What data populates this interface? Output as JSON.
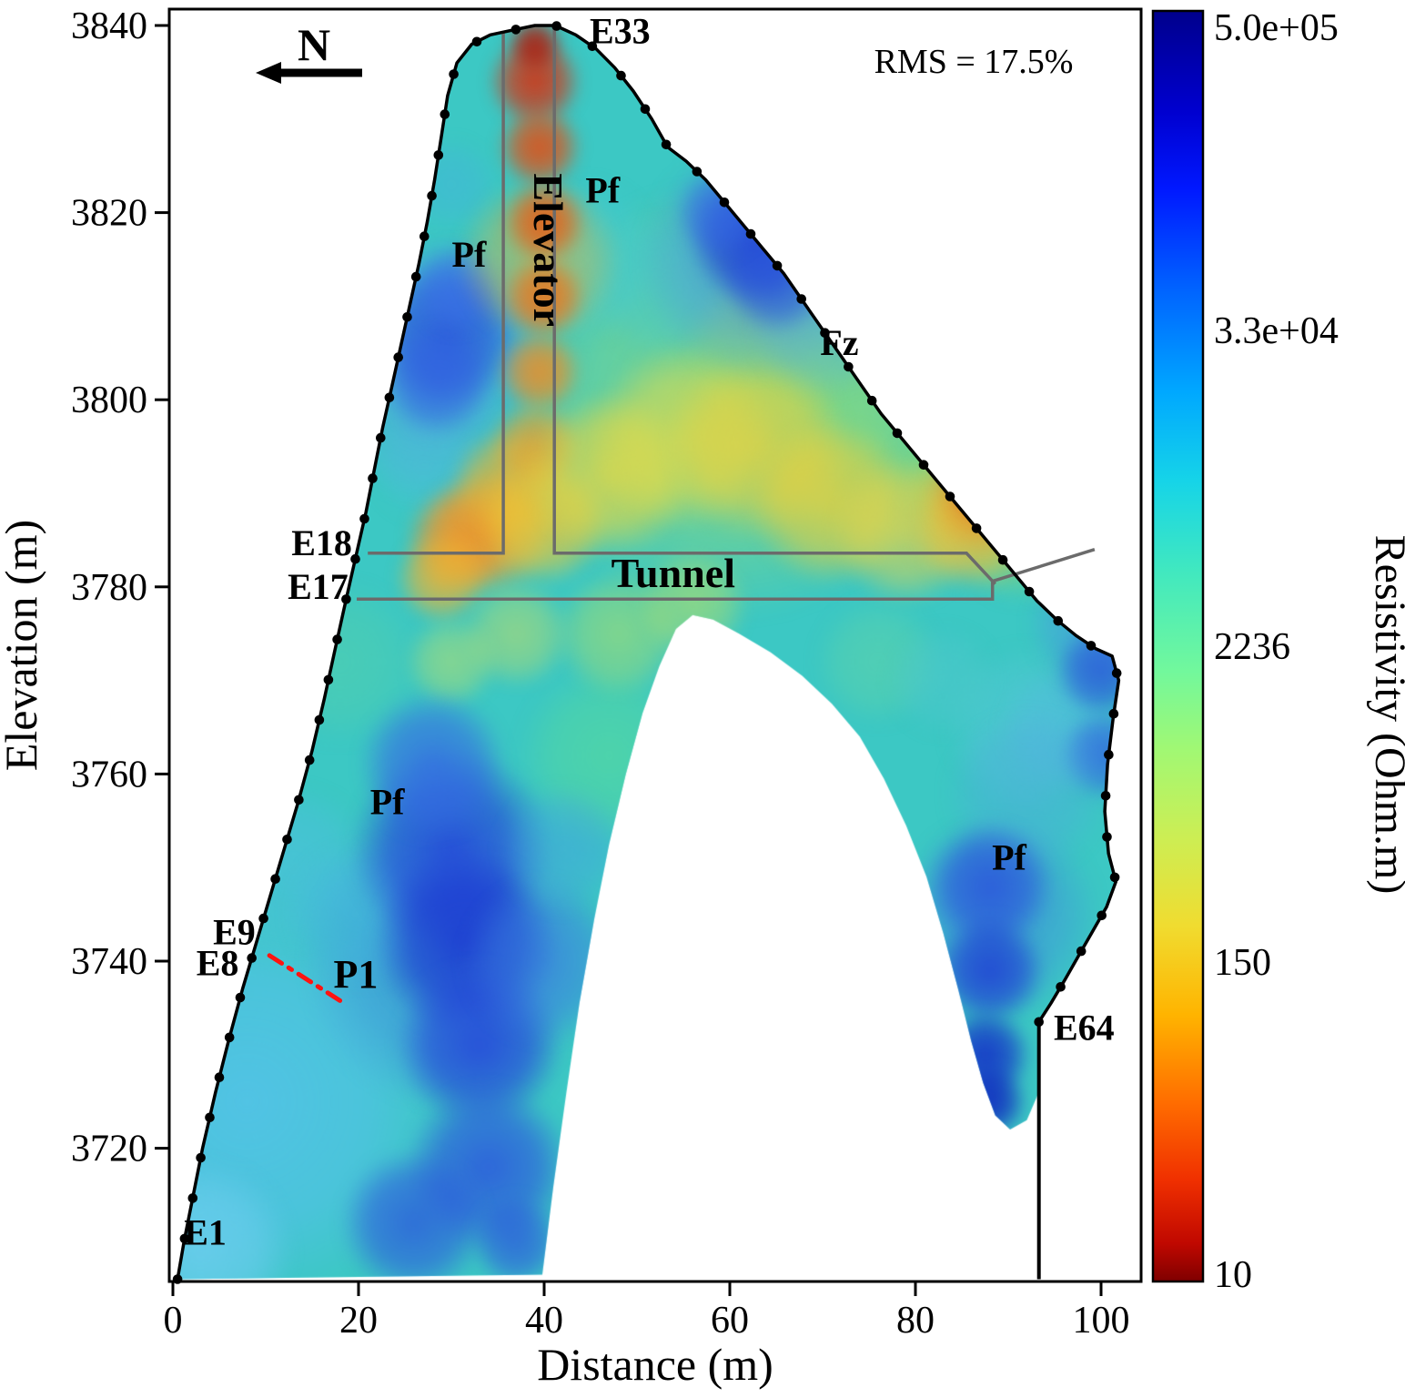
{
  "figure": {
    "xlabel": "Distance (m)",
    "ylabel": "Elevation (m)",
    "colorbar_label": "Resistivity (Ohm.m)",
    "rms_label": "RMS = 17.5%",
    "north_label": "N"
  },
  "chart_data": {
    "type": "heatmap",
    "title": "Inverted electrical resistivity tomography cross-section",
    "xlabel": "Distance (m)",
    "ylabel": "Elevation (m)",
    "xlim": [
      0,
      104
    ],
    "ylim": [
      3705,
      3842
    ],
    "x_ticks": [
      0,
      20,
      40,
      60,
      80,
      100
    ],
    "y_ticks": [
      3720,
      3740,
      3760,
      3780,
      3800,
      3820,
      3840
    ],
    "rms": "17.5%",
    "colorbar": {
      "label": "Resistivity (Ohm.m)",
      "scale": "log",
      "range_ohm_m": [
        10,
        500000
      ],
      "ticks": [
        {
          "label": "5.0e+05",
          "t": 0.0
        },
        {
          "label": "3.3e+04",
          "t": 0.2513
        },
        {
          "label": "2236",
          "t": 0.5
        },
        {
          "label": "150",
          "t": 0.7487
        },
        {
          "label": "10",
          "t": 1.0
        }
      ],
      "gradient": [
        [
          0,
          "#00008c"
        ],
        [
          0.08,
          "#0000d0"
        ],
        [
          0.14,
          "#0018ff"
        ],
        [
          0.22,
          "#0064ff"
        ],
        [
          0.3,
          "#00a8ff"
        ],
        [
          0.37,
          "#16d4e8"
        ],
        [
          0.44,
          "#40e8c0"
        ],
        [
          0.52,
          "#72f89c"
        ],
        [
          0.58,
          "#a0f874"
        ],
        [
          0.65,
          "#ccee54"
        ],
        [
          0.72,
          "#f0dc30"
        ],
        [
          0.79,
          "#ffb400"
        ],
        [
          0.86,
          "#ff6c00"
        ],
        [
          0.92,
          "#f03000"
        ],
        [
          0.97,
          "#c00800"
        ],
        [
          1,
          "#7f0000"
        ]
      ]
    },
    "electrodes": {
      "count": 64,
      "first": "E1",
      "last": "E64",
      "labeled": [
        "E1",
        "E8",
        "E9",
        "E17",
        "E18",
        "E33",
        "E64"
      ]
    },
    "boundary_surface": [
      [
        0.5,
        3706
      ],
      [
        1.2,
        3710
      ],
      [
        2.2,
        3715
      ],
      [
        3.2,
        3720
      ],
      [
        4.6,
        3726
      ],
      [
        6.0,
        3731.5
      ],
      [
        7.5,
        3737
      ],
      [
        9.0,
        3742
      ],
      [
        10.5,
        3747
      ],
      [
        12.0,
        3752
      ],
      [
        13.5,
        3757
      ],
      [
        15.0,
        3762.5
      ],
      [
        16.3,
        3768
      ],
      [
        17.4,
        3773
      ],
      [
        18.4,
        3777.5
      ],
      [
        19.2,
        3781
      ],
      [
        20.0,
        3784.5
      ],
      [
        20.8,
        3788
      ],
      [
        21.7,
        3792.5
      ],
      [
        22.6,
        3797
      ],
      [
        23.5,
        3801
      ],
      [
        24.5,
        3805.5
      ],
      [
        25.5,
        3810
      ],
      [
        26.5,
        3814.5
      ],
      [
        27.4,
        3819
      ],
      [
        28.2,
        3823.5
      ],
      [
        28.9,
        3828
      ],
      [
        29.6,
        3832.5
      ],
      [
        30.6,
        3836
      ],
      [
        32.2,
        3838
      ],
      [
        34.2,
        3839
      ],
      [
        36.6,
        3839.5
      ],
      [
        39.0,
        3840
      ],
      [
        41.2,
        3840
      ],
      [
        43.4,
        3839
      ],
      [
        45.6,
        3837.5
      ],
      [
        47.6,
        3835.5
      ],
      [
        49.6,
        3833
      ],
      [
        51.6,
        3830
      ],
      [
        53.3,
        3827
      ],
      [
        55.3,
        3825.5
      ],
      [
        57.4,
        3823.5
      ],
      [
        59.5,
        3821
      ],
      [
        61.6,
        3818.5
      ],
      [
        63.7,
        3816
      ],
      [
        65.8,
        3813.5
      ],
      [
        67.9,
        3810.5
      ],
      [
        70.0,
        3807.5
      ],
      [
        72.1,
        3804.5
      ],
      [
        74.2,
        3801.5
      ],
      [
        76.3,
        3798.5
      ],
      [
        78.4,
        3796
      ],
      [
        80.5,
        3793.5
      ],
      [
        82.6,
        3791
      ],
      [
        84.7,
        3788.5
      ],
      [
        86.8,
        3786
      ],
      [
        88.9,
        3783.5
      ],
      [
        91.0,
        3781
      ],
      [
        93.1,
        3778.5
      ],
      [
        95.2,
        3776.5
      ],
      [
        97.3,
        3774.8
      ],
      [
        99.4,
        3773.4
      ],
      [
        101.2,
        3772.6
      ],
      [
        101.9,
        3770.0
      ],
      [
        101.3,
        3766
      ],
      [
        100.7,
        3761
      ],
      [
        100.4,
        3756
      ],
      [
        100.8,
        3751.5
      ],
      [
        101.6,
        3748.5
      ],
      [
        100.6,
        3745.8
      ],
      [
        99.1,
        3743.2
      ],
      [
        97.6,
        3740.6
      ],
      [
        96.1,
        3738.0
      ],
      [
        94.6,
        3735.5
      ],
      [
        93.3,
        3733.5
      ]
    ],
    "boundary_underside": [
      [
        93.3,
        3726
      ],
      [
        92.0,
        3723
      ],
      [
        90.2,
        3722
      ],
      [
        88.6,
        3723.5
      ],
      [
        87.3,
        3727
      ],
      [
        86.0,
        3731.5
      ],
      [
        84.6,
        3737
      ],
      [
        83.0,
        3743
      ],
      [
        81.2,
        3749
      ],
      [
        79.0,
        3754.5
      ],
      [
        76.6,
        3759.5
      ],
      [
        74.0,
        3764
      ],
      [
        71.0,
        3767.5
      ],
      [
        67.8,
        3770.5
      ],
      [
        64.4,
        3773
      ],
      [
        61.0,
        3775
      ],
      [
        58.2,
        3776.5
      ],
      [
        56.0,
        3777
      ],
      [
        54.2,
        3775.5
      ],
      [
        52.4,
        3771.5
      ],
      [
        50.6,
        3766.5
      ],
      [
        48.8,
        3760
      ],
      [
        47.0,
        3752.5
      ],
      [
        45.4,
        3744.5
      ],
      [
        43.8,
        3735.5
      ],
      [
        42.4,
        3726
      ],
      [
        41.0,
        3716
      ],
      [
        39.8,
        3706.5
      ],
      [
        0.5,
        3706
      ]
    ],
    "e64_line": [
      [
        93.3,
        3733.5
      ],
      [
        93.3,
        3706
      ]
    ],
    "structures": [
      {
        "name": "elevator-shaft-left-wall",
        "pts": [
          [
            35.6,
            3839.4
          ],
          [
            35.6,
            3783.6
          ],
          [
            21.0,
            3783.6
          ]
        ]
      },
      {
        "name": "elevator-shaft-right-wall-tunnel-roof",
        "pts": [
          [
            41.1,
            3839.8
          ],
          [
            41.1,
            3783.6
          ],
          [
            85.5,
            3783.6
          ],
          [
            88.6,
            3780.3
          ]
        ]
      },
      {
        "name": "tunnel-floor",
        "pts": [
          [
            19.8,
            3778.7
          ],
          [
            88.3,
            3778.7
          ],
          [
            88.3,
            3780.6
          ],
          [
            99.3,
            3784.0
          ]
        ]
      }
    ],
    "p1_line": {
      "name": "P1",
      "pts": [
        [
          10.4,
          3740.6
        ],
        [
          18.6,
          3735.4
        ]
      ]
    },
    "north_arrow": {
      "direction": "left"
    },
    "field": {
      "base_color": "#3cc8c4",
      "blobs": [
        [
          8,
          3725,
          22,
          "#55c2ea",
          0.85
        ],
        [
          3,
          3709,
          10,
          "#6ccdee",
          0.85
        ],
        [
          13,
          3750,
          9,
          "#4fc0e0",
          0.6
        ],
        [
          18,
          3772,
          9,
          "#52cfae",
          0.6
        ],
        [
          47,
          3762,
          10,
          "#55d8a0",
          0.7
        ],
        [
          60,
          3800,
          24,
          "#aade66",
          0.5
        ],
        [
          75,
          3795,
          13,
          "#92dc74",
          0.55
        ],
        [
          44,
          3815,
          9,
          "#48cdd4",
          0.6
        ],
        [
          53,
          3812,
          8,
          "#46c8cc",
          0.6
        ],
        [
          92,
          3765,
          9,
          "#58c8d8",
          0.6
        ],
        [
          97,
          3784,
          7,
          "#74d686",
          0.65
        ],
        [
          48,
          3775,
          7,
          "#b8e060",
          0.55
        ],
        [
          56,
          3778,
          6,
          "#d0e455",
          0.5
        ],
        [
          76,
          3772,
          7,
          "#62d4a8",
          0.55
        ],
        [
          83,
          3770,
          6,
          "#50c8cc",
          0.55
        ],
        [
          96,
          3765,
          7,
          "#54b8e2",
          0.5
        ],
        [
          64,
          3805,
          9,
          "#a0dc6a",
          0.45
        ],
        [
          84,
          3792,
          7,
          "#84da7c",
          0.55
        ],
        [
          30,
          3823,
          5,
          "#44b4dc",
          0.5
        ],
        [
          27,
          3793,
          6,
          "#4cc2d8",
          0.5
        ],
        [
          91,
          3784,
          6,
          "#7cd882",
          0.5
        ],
        [
          29,
          3806,
          12,
          "#4f9ae8",
          0.55
        ],
        [
          27,
          3798,
          9,
          "#55aee0",
          0.45
        ],
        [
          29.5,
          3807,
          8,
          "#2a52dc",
          0.85
        ],
        [
          28.5,
          3802,
          6,
          "#3160e2",
          0.75
        ],
        [
          30.5,
          3812,
          5,
          "#3b6ee8",
          0.7
        ],
        [
          39.5,
          3815,
          9,
          "#f3b52e",
          0.5
        ],
        [
          39,
          3834,
          5,
          "#d63111",
          0.92
        ],
        [
          39.5,
          3827,
          4.5,
          "#e44d12",
          0.92
        ],
        [
          40,
          3819,
          4.5,
          "#ea5c12",
          0.9
        ],
        [
          40,
          3811,
          4.5,
          "#ef7218",
          0.88
        ],
        [
          39.5,
          3803,
          4.5,
          "#f28c22",
          0.88
        ],
        [
          39,
          3795,
          5,
          "#f2a028",
          0.82
        ],
        [
          39,
          3838,
          3,
          "#b21708",
          0.9
        ],
        [
          34,
          3786,
          7,
          "#f5a52c",
          0.85
        ],
        [
          31,
          3785,
          6,
          "#f2952a",
          0.85
        ],
        [
          29,
          3781,
          5,
          "#f5b32e",
          0.8
        ],
        [
          36,
          3791,
          6,
          "#f3b22e",
          0.75
        ],
        [
          40,
          3787,
          7,
          "#f3c833",
          0.8
        ],
        [
          47,
          3792,
          9,
          "#eed83e",
          0.75
        ],
        [
          55,
          3796,
          10,
          "#e6dc48",
          0.7
        ],
        [
          63,
          3795,
          10,
          "#ead23e",
          0.75
        ],
        [
          71,
          3789,
          9,
          "#eccf3c",
          0.75
        ],
        [
          79,
          3786,
          8,
          "#e8d44a",
          0.7
        ],
        [
          86,
          3786,
          6,
          "#f0c23a",
          0.65
        ],
        [
          37,
          3775,
          6,
          "#d8e058",
          0.5
        ],
        [
          30,
          3772,
          5,
          "#cfe35e",
          0.5
        ],
        [
          63,
          3815,
          13,
          "#4b8fe6",
          0.55
        ],
        [
          70,
          3808,
          8,
          "#55aede",
          0.45
        ],
        [
          62.5,
          3817,
          7,
          "#1f3fd4",
          0.9
        ],
        [
          65,
          3813,
          6,
          "#2a52dc",
          0.8
        ],
        [
          59,
          3820,
          5,
          "#3464e4",
          0.75
        ],
        [
          87,
          3788,
          9,
          "#efc238",
          0.5
        ],
        [
          87.5,
          3790,
          6.5,
          "#ef8c20",
          0.65
        ],
        [
          88,
          3791,
          4.5,
          "#dd3c10",
          0.85
        ],
        [
          88,
          3792,
          2.5,
          "#a51408",
          0.95
        ],
        [
          99,
          3776,
          7,
          "#4b8fe6",
          0.5
        ],
        [
          100,
          3771,
          5,
          "#2a52dc",
          0.8
        ],
        [
          100.5,
          3762,
          5,
          "#3160e2",
          0.75
        ],
        [
          89,
          3745,
          11,
          "#4088e0",
          0.55
        ],
        [
          92,
          3758,
          9,
          "#50a8e0",
          0.45
        ],
        [
          88,
          3748,
          7,
          "#2a52dc",
          0.85
        ],
        [
          88,
          3739,
          6,
          "#1f3fd4",
          0.88
        ],
        [
          87.5,
          3730,
          5,
          "#132cc8",
          0.9
        ],
        [
          88,
          3725,
          4,
          "#0f24c0",
          0.92
        ],
        [
          30,
          3740,
          16,
          "#3f80e4",
          0.55
        ],
        [
          20,
          3745,
          8,
          "#48b4e4",
          0.5
        ],
        [
          30,
          3752,
          11,
          "#2546da",
          0.9
        ],
        [
          31.5,
          3742,
          10,
          "#1c38d2",
          0.9
        ],
        [
          33,
          3731,
          9,
          "#2546da",
          0.88
        ],
        [
          34,
          3718,
          9,
          "#2c55de",
          0.86
        ],
        [
          28,
          3761,
          8,
          "#3568e4",
          0.8
        ],
        [
          26,
          3712,
          8,
          "#2c55de",
          0.78
        ],
        [
          37,
          3710,
          5,
          "#2c55de",
          0.75
        ],
        [
          40,
          3740,
          9,
          "#3a78e2",
          0.55
        ],
        [
          42,
          3752,
          7,
          "#44a0e0",
          0.5
        ]
      ]
    },
    "annotations": [
      {
        "text": "E33",
        "x": 44.9,
        "y": 3838.1,
        "size": 40,
        "color": "#e93323",
        "weight": "bold",
        "anchor": "start"
      },
      {
        "text": "E18",
        "x": 19.3,
        "y": 3783.4,
        "size": 40,
        "color": "#e93323",
        "weight": "bold",
        "anchor": "end"
      },
      {
        "text": "E17",
        "x": 18.9,
        "y": 3778.7,
        "size": 40,
        "color": "#e93323",
        "weight": "bold",
        "anchor": "end"
      },
      {
        "text": "E9",
        "x": 8.9,
        "y": 3741.8,
        "size": 40,
        "color": "#e93323",
        "weight": "bold",
        "anchor": "end"
      },
      {
        "text": "E8",
        "x": 7.1,
        "y": 3738.5,
        "size": 40,
        "color": "#e93323",
        "weight": "bold",
        "anchor": "end"
      },
      {
        "text": "E1",
        "x": 1.2,
        "y": 3709.7,
        "size": 40,
        "color": "#e93323",
        "weight": "bold",
        "anchor": "start"
      },
      {
        "text": "E64",
        "x": 94.9,
        "y": 3731.6,
        "size": 40,
        "color": "#e93323",
        "weight": "bold",
        "anchor": "start"
      },
      {
        "text": "Pf",
        "x": 31.9,
        "y": 3814.2,
        "size": 40,
        "color": "#000000",
        "weight": "bold",
        "anchor": "middle"
      },
      {
        "text": "Pf",
        "x": 46.3,
        "y": 3821.1,
        "size": 40,
        "color": "#000000",
        "weight": "bold",
        "anchor": "middle"
      },
      {
        "text": "Fz",
        "x": 71.8,
        "y": 3804.8,
        "size": 40,
        "color": "#000000",
        "weight": "bold",
        "anchor": "middle"
      },
      {
        "text": "Pf",
        "x": 23.1,
        "y": 3755.7,
        "size": 40,
        "color": "#000000",
        "weight": "bold",
        "anchor": "middle"
      },
      {
        "text": "Pf",
        "x": 90.1,
        "y": 3749.8,
        "size": 40,
        "color": "#000000",
        "weight": "bold",
        "anchor": "middle"
      },
      {
        "text": "P1",
        "x": 19.7,
        "y": 3737.2,
        "size": 44,
        "color": "#000000",
        "weight": "bold",
        "anchor": "middle"
      },
      {
        "text": "Tunnel",
        "x": 53.9,
        "y": 3780.0,
        "size": 46,
        "color": "#000000",
        "weight": "bold",
        "anchor": "middle"
      },
      {
        "text": "Elevator",
        "x": 38.9,
        "y": 3816,
        "size": 46,
        "color": "#000000",
        "weight": "bold",
        "anchor": "middle",
        "rotate": 90
      }
    ]
  }
}
